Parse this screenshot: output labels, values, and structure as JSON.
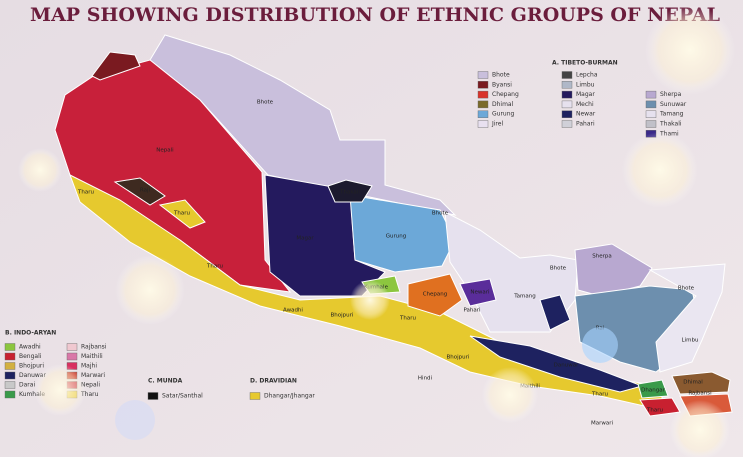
{
  "title": "MAP SHOWING DISTRIBUTION OF ETHNIC GROUPS OF NEPAL",
  "legend": {
    "tibeto_burman": {
      "heading": "A. TIBETO-BURMAN",
      "items": [
        "Bhote",
        "Byansi",
        "Chepang",
        "Dhimal",
        "Gurung",
        "Jirel",
        "Lepcha",
        "Limbu",
        "Magar",
        "Mechi",
        "Newar",
        "Pahari",
        "Sherpa",
        "Sunuwar",
        "Tamang",
        "Thakali",
        "Thami"
      ]
    },
    "indo_aryan": {
      "heading": "B. INDO-ARYAN",
      "items": [
        "Awadhi",
        "Bengali",
        "Bhojpuri",
        "Danuwar",
        "Darai",
        "Kumhale",
        "Rajbansi",
        "Maithili",
        "Majhi",
        "Marwari",
        "Nepali",
        "Tharu"
      ]
    },
    "munda": {
      "heading": "C. MUNDA",
      "items": [
        "Satar/Santhal"
      ]
    },
    "dravidian": {
      "heading": "D. DRAVIDIAN",
      "items": [
        "Dhangar/Jhangar"
      ]
    }
  },
  "map_labels": [
    "Nepali",
    "Bhote",
    "Raji",
    "Tharu",
    "Tharu",
    "Thakali",
    "Magar",
    "Gurung",
    "Bhote",
    "Tharu",
    "Kumhale",
    "Chepang",
    "Newari",
    "Pahari",
    "Tamang",
    "Bhote",
    "Sherpa",
    "Bhote",
    "Rai",
    "Limbu",
    "Awadhi",
    "Bhojpuri",
    "Tharu",
    "Bhojpuri",
    "Hindi",
    "Danuwar",
    "Maithili",
    "Tharu",
    "Dhangar",
    "Dhimal",
    "Rajbansi",
    "Tharu",
    "Marwari"
  ]
}
